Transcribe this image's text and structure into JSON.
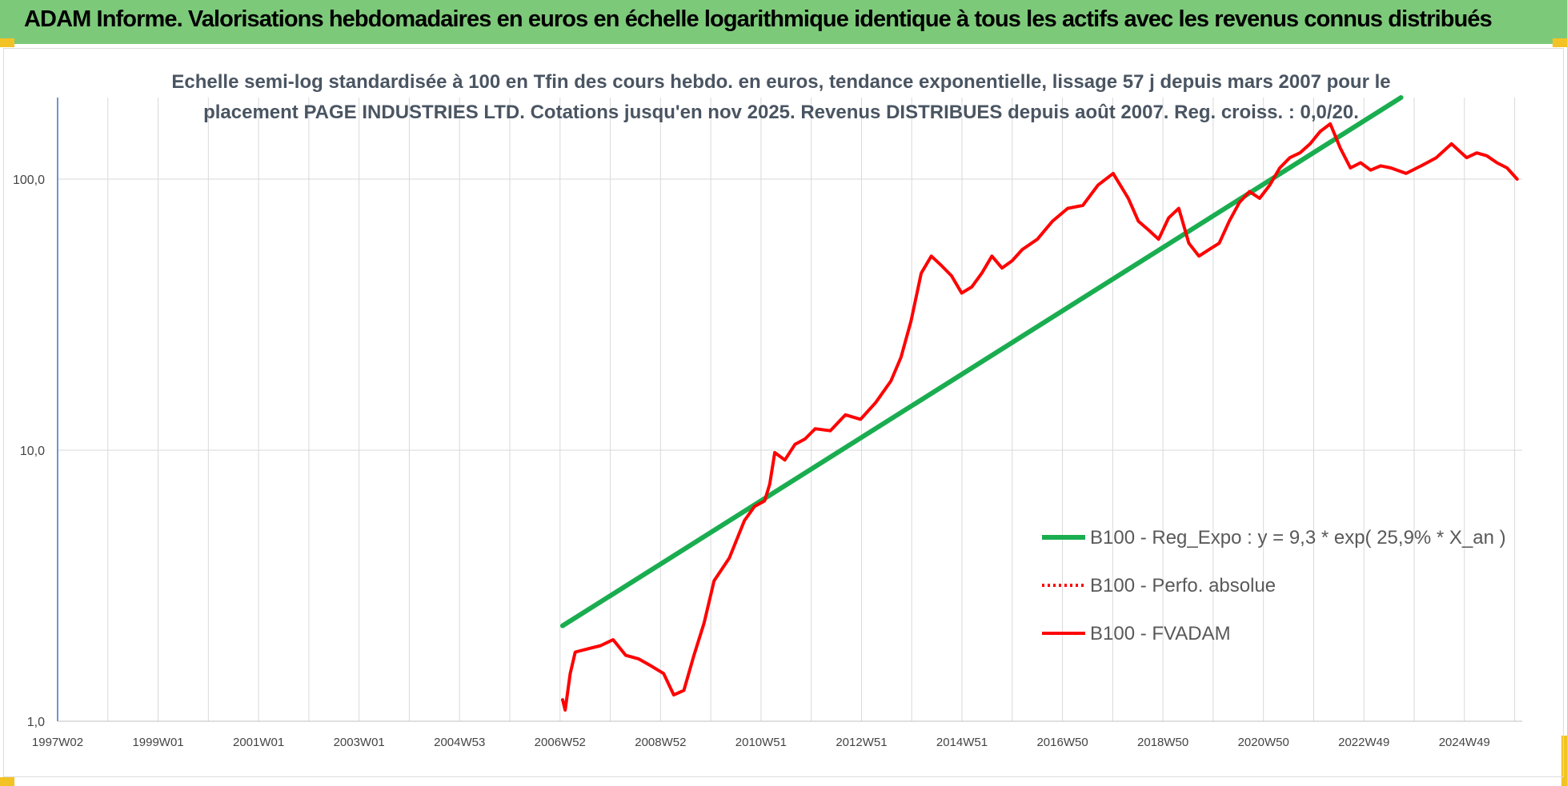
{
  "window_title": "ADAM Informe. Valorisations hebdomadaires en euros en échelle logarithmique identique à tous les actifs avec les revenus connus distribués",
  "colors": {
    "banner": "#7dc97a",
    "regression": "#1aad50",
    "fvadam": "#ff0000",
    "perfo": "#ff0000",
    "corner_accent": "#f3c325"
  },
  "chart_data": {
    "type": "line",
    "title_line1": "Echelle semi-log standardisée à 100 en Tfin des cours hebdo. en euros, tendance exponentielle, lissage 57 j depuis mars 2007 pour le",
    "title_line2": "placement PAGE INDUSTRIES LTD. Cotations jusqu'en nov 2025.  Revenus DISTRIBUES depuis août 2007. Reg. croiss. : 0,0/20.",
    "y_scale": "log",
    "ylim": [
      1,
      200
    ],
    "y_ticks": [
      "1,0",
      "10,0",
      "100,0"
    ],
    "x_ticks": [
      "1997W02",
      "1999W01",
      "2001W01",
      "2003W01",
      "2004W53",
      "2006W52",
      "2008W52",
      "2010W51",
      "2012W51",
      "2014W51",
      "2016W50",
      "2018W50",
      "2020W50",
      "2022W49",
      "2024W49"
    ],
    "x_range_years": [
      1997.0,
      2026.0
    ],
    "grid": true,
    "legend_position": "lower-right",
    "series": [
      {
        "name": "B100 - Reg_Expo : y = 9,3 * exp( 25,9% *  X_an )",
        "style": "solid",
        "color": "#1aad50",
        "x": [
          2007.0,
          2023.6
        ],
        "y": [
          2.25,
          200
        ]
      },
      {
        "name": "B100 - Perfo. absolue",
        "style": "dotted",
        "color": "#ff0000",
        "x": [],
        "y": []
      },
      {
        "name": "B100 - FVADAM",
        "style": "solid",
        "color": "#ff0000",
        "x": [
          2007.0,
          2007.05,
          2007.15,
          2007.25,
          2007.5,
          2007.75,
          2008.0,
          2008.25,
          2008.5,
          2008.75,
          2009.0,
          2009.2,
          2009.4,
          2009.6,
          2009.8,
          2010.0,
          2010.3,
          2010.6,
          2010.8,
          2011.0,
          2011.1,
          2011.2,
          2011.4,
          2011.6,
          2011.8,
          2012.0,
          2012.3,
          2012.6,
          2012.9,
          2013.2,
          2013.5,
          2013.7,
          2013.9,
          2014.1,
          2014.3,
          2014.5,
          2014.7,
          2014.9,
          2015.1,
          2015.3,
          2015.5,
          2015.7,
          2015.9,
          2016.1,
          2016.4,
          2016.7,
          2017.0,
          2017.3,
          2017.6,
          2017.9,
          2018.2,
          2018.4,
          2018.6,
          2018.8,
          2019.0,
          2019.2,
          2019.4,
          2019.6,
          2019.8,
          2020.0,
          2020.2,
          2020.4,
          2020.6,
          2020.8,
          2021.0,
          2021.2,
          2021.4,
          2021.6,
          2021.8,
          2022.0,
          2022.2,
          2022.4,
          2022.6,
          2022.8,
          2023.0,
          2023.2,
          2023.4,
          2023.7,
          2024.0,
          2024.3,
          2024.6,
          2024.9,
          2025.1,
          2025.3,
          2025.5,
          2025.7,
          2025.9
        ],
        "y": [
          1.2,
          1.1,
          1.5,
          1.8,
          1.85,
          1.9,
          2.0,
          1.75,
          1.7,
          1.6,
          1.5,
          1.25,
          1.3,
          1.75,
          2.3,
          3.3,
          4.0,
          5.5,
          6.2,
          6.5,
          7.5,
          9.8,
          9.2,
          10.5,
          11.0,
          12.0,
          11.8,
          13.5,
          13.0,
          15.0,
          18.0,
          22.0,
          30.0,
          45.0,
          52.0,
          48.0,
          44.0,
          38.0,
          40.0,
          45.0,
          52.0,
          47.0,
          50.0,
          55.0,
          60.0,
          70.0,
          78.0,
          80.0,
          95.0,
          105.0,
          85.0,
          70.0,
          65.0,
          60.0,
          72.0,
          78.0,
          58.0,
          52.0,
          55.0,
          58.0,
          70.0,
          82.0,
          90.0,
          85.0,
          95.0,
          110.0,
          120.0,
          125.0,
          135.0,
          150.0,
          160.0,
          130.0,
          110.0,
          115.0,
          108.0,
          112.0,
          110.0,
          105.0,
          112.0,
          120.0,
          135.0,
          120.0,
          125.0,
          122.0,
          115.0,
          110.0,
          100.0
        ]
      }
    ]
  }
}
